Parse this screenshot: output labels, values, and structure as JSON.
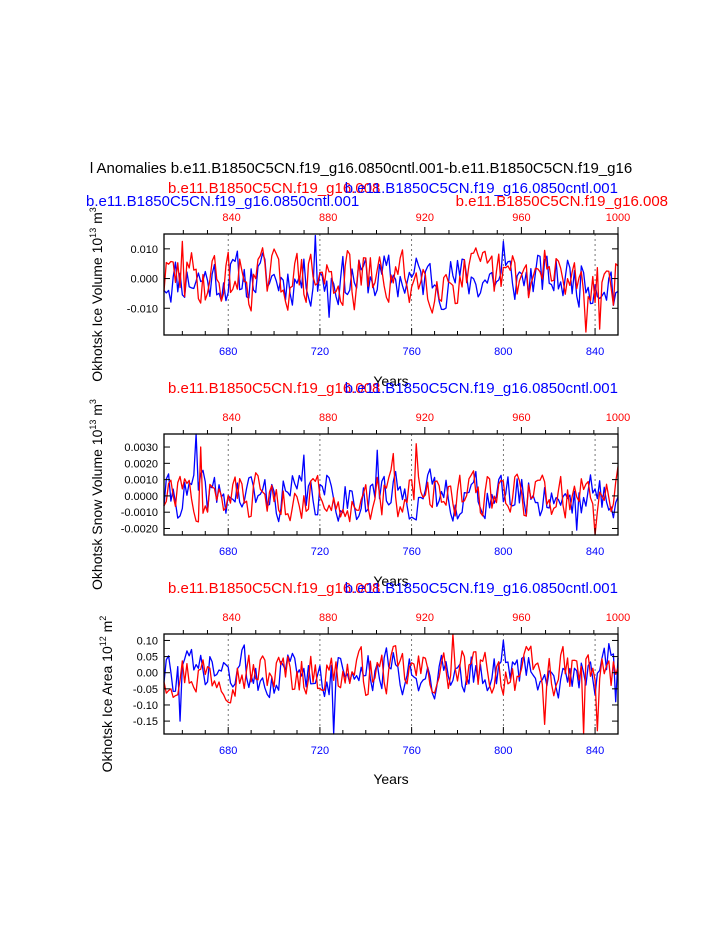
{
  "figure": {
    "title": "l Anomalies b.e11.B1850C5CN.f19_g16.0850cntl.001-b.e11.B1850C5CN.f19_g16",
    "colors": {
      "series_a": "#0000ff",
      "series_b": "#ff0000",
      "axis": "#000000",
      "grid": "#555555"
    }
  },
  "chart_data": [
    {
      "type": "line",
      "ylabel_main": "Okhotsk Ice Volume 10",
      "ylabel_exp": "13",
      "ylabel_unit": " m",
      "ylabel_unit_exp": "3",
      "xlabel": "Years",
      "title_left": "b.e11.B1850C5CN.f19_g16.008",
      "title_right": "b.e11.B1850C5CN.f19_g16.0850cntl.001",
      "overlap_left": "b.e11.B1850C5CN.f19_g16.0850cntl.001",
      "overlap_right": "b.e11.B1850C5CN.f19_g16.008",
      "x_bottom_range": [
        652,
        850
      ],
      "x_bottom_ticks": [
        680,
        720,
        760,
        800,
        840
      ],
      "x_top_range": [
        812,
        1000
      ],
      "x_top_ticks": [
        840,
        880,
        920,
        960,
        1000
      ],
      "ylim": [
        -0.019,
        0.015
      ],
      "y_ticks": [
        0.01,
        0.0,
        -0.01
      ],
      "y_tick_labels": [
        "0.010",
        "0.000",
        "-0.010"
      ],
      "x_grid": [
        680,
        720,
        760,
        800,
        840
      ],
      "series": [
        {
          "name": "b.e11.B1850C5CN.f19_g16.0850cntl.001",
          "color": "#0000ff",
          "seed": 11,
          "amp": 0.0055,
          "extremes": [
            [
              718,
              0.0145
            ],
            [
              724,
              -0.013
            ],
            [
              800,
              0.0125
            ],
            [
              848,
              -0.009
            ]
          ]
        },
        {
          "name": "b.e11.B1850C5CN.f19_g16.008",
          "color": "#ff0000",
          "seed": 29,
          "amp": 0.006,
          "extremes": [
            [
              660,
              0.0125
            ],
            [
              735,
              -0.0105
            ],
            [
              818,
              0.0095
            ],
            [
              836,
              -0.018
            ],
            [
              842,
              -0.017
            ]
          ]
        }
      ]
    },
    {
      "type": "line",
      "ylabel_main": "Okhotsk Snow Volume 10",
      "ylabel_exp": "13",
      "ylabel_unit": " m",
      "ylabel_unit_exp": "3",
      "xlabel": "Years",
      "title_left": "b.e11.B1850C5CN.f19_g16.008",
      "title_right": "b.e11.B1850C5CN.f19_g16.0850cntl.001",
      "x_bottom_range": [
        652,
        850
      ],
      "x_bottom_ticks": [
        680,
        720,
        760,
        800,
        840
      ],
      "x_top_range": [
        812,
        1000
      ],
      "x_top_ticks": [
        840,
        880,
        920,
        960,
        1000
      ],
      "ylim": [
        -0.0024,
        0.0038
      ],
      "y_ticks": [
        0.003,
        0.002,
        0.001,
        0.0,
        -0.001,
        -0.002
      ],
      "y_tick_labels": [
        "0.0030",
        "0.0020",
        "0.0010",
        "0.0000",
        "-0.0010",
        "-0.0020"
      ],
      "x_grid": [
        680,
        720,
        760,
        800,
        840
      ],
      "series": [
        {
          "name": "b.e11.B1850C5CN.f19_g16.0850cntl.001",
          "color": "#0000ff",
          "seed": 41,
          "amp": 0.0009,
          "extremes": [
            [
              666,
              0.0038
            ],
            [
              713,
              0.0025
            ],
            [
              745,
              0.0028
            ],
            [
              832,
              -0.0021
            ]
          ]
        },
        {
          "name": "b.e11.B1850C5CN.f19_g16.008",
          "color": "#ff0000",
          "seed": 57,
          "amp": 0.0009,
          "extremes": [
            [
              668,
              0.003
            ],
            [
              752,
              0.0026
            ],
            [
              762,
              0.0032
            ],
            [
              840,
              -0.0024
            ],
            [
              850,
              0.0018
            ]
          ]
        }
      ]
    },
    {
      "type": "line",
      "ylabel_main": "Okhotsk Ice Area 10",
      "ylabel_exp": "12",
      "ylabel_unit": " m",
      "ylabel_unit_exp": "2",
      "xlabel": "Years",
      "title_left": "b.e11.B1850C5CN.f19_g16.008",
      "title_right": "b.e11.B1850C5CN.f19_g16.0850cntl.001",
      "x_bottom_range": [
        652,
        850
      ],
      "x_bottom_ticks": [
        680,
        720,
        760,
        800,
        840
      ],
      "x_top_range": [
        812,
        1000
      ],
      "x_top_ticks": [
        840,
        880,
        920,
        960,
        1000
      ],
      "ylim": [
        -0.19,
        0.12
      ],
      "y_ticks": [
        0.1,
        0.05,
        0.0,
        -0.05,
        -0.1,
        -0.15
      ],
      "y_tick_labels": [
        "0.10",
        "0.05",
        "0.00",
        "-0.05",
        "-0.10",
        "-0.15"
      ],
      "x_grid": [
        680,
        720,
        760,
        800,
        840
      ],
      "series": [
        {
          "name": "b.e11.B1850C5CN.f19_g16.0850cntl.001",
          "color": "#0000ff",
          "seed": 73,
          "amp": 0.045,
          "extremes": [
            [
              659,
              -0.15
            ],
            [
              726,
              -0.19
            ],
            [
              800,
              0.1
            ],
            [
              846,
              0.09
            ],
            [
              849,
              -0.09
            ]
          ]
        },
        {
          "name": "b.e11.B1850C5CN.f19_g16.008",
          "color": "#ff0000",
          "seed": 97,
          "amp": 0.045,
          "extremes": [
            [
              778,
              0.12
            ],
            [
              818,
              -0.16
            ],
            [
              835,
              -0.19
            ],
            [
              841,
              -0.18
            ]
          ]
        }
      ]
    }
  ]
}
